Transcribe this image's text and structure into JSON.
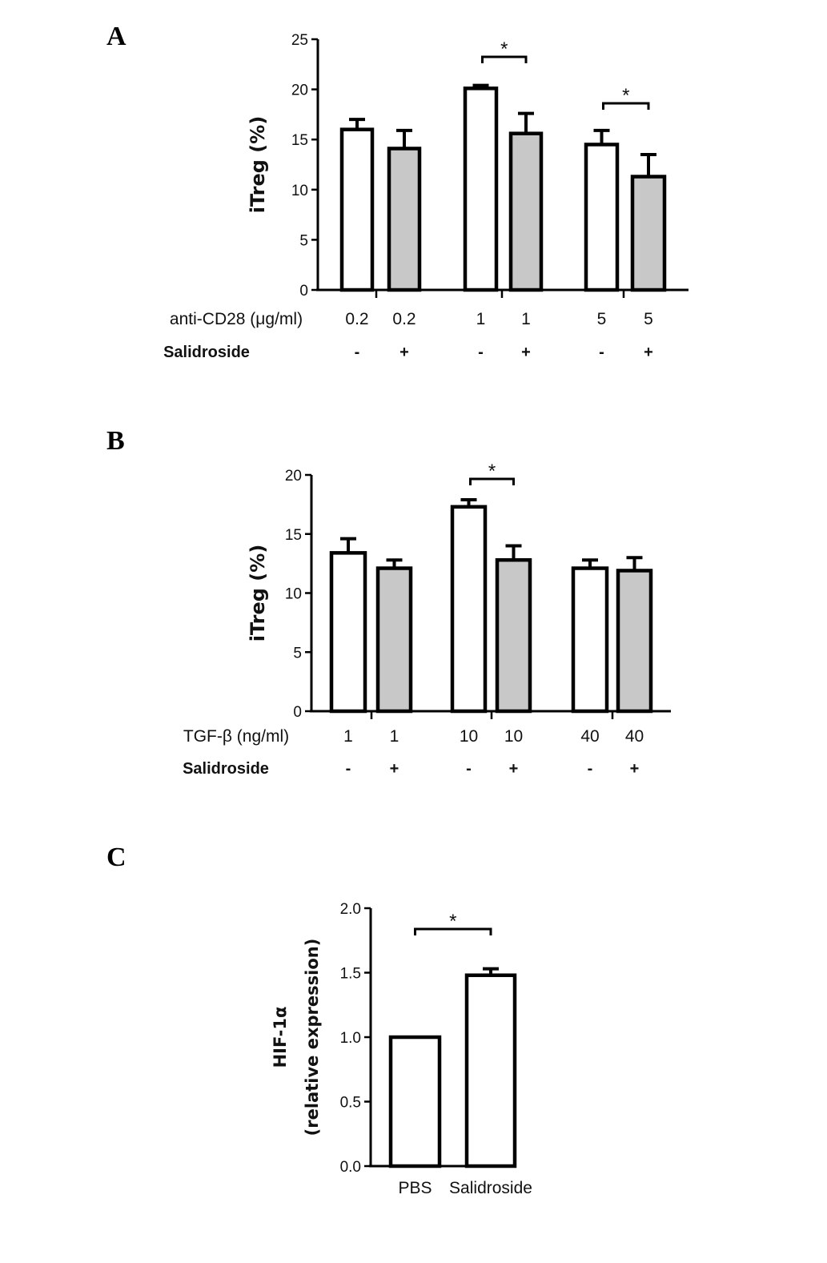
{
  "chart_data": [
    {
      "panel": "A",
      "type": "bar",
      "ylabel": "iTreg (%)",
      "ylim": [
        0,
        25
      ],
      "yticks": [
        0,
        5,
        10,
        15,
        20,
        25
      ],
      "row_labels": [
        "anti-CD28 (μg/ml)",
        "Salidroside"
      ],
      "categories": [
        "0.2",
        "0.2",
        "1",
        "1",
        "5",
        "5"
      ],
      "salidroside": [
        "-",
        "+",
        "-",
        "+",
        "-",
        "+"
      ],
      "values": [
        16.0,
        14.1,
        20.1,
        15.6,
        14.5,
        11.3
      ],
      "errors": [
        1.0,
        1.8,
        0.3,
        2.0,
        1.4,
        2.2
      ],
      "significance": [
        {
          "pair": [
            2,
            3
          ],
          "label": "*"
        },
        {
          "pair": [
            4,
            5
          ],
          "label": "*"
        }
      ],
      "colors": {
        "control": "#ffffff",
        "salidroside": "#c8c8c8"
      }
    },
    {
      "panel": "B",
      "type": "bar",
      "ylabel": "iTreg (%)",
      "ylim": [
        0,
        20
      ],
      "yticks": [
        0,
        5,
        10,
        15,
        20
      ],
      "row_labels": [
        "TGF-β (ng/ml)",
        "Salidroside"
      ],
      "categories": [
        "1",
        "1",
        "10",
        "10",
        "40",
        "40"
      ],
      "salidroside": [
        "-",
        "+",
        "-",
        "+",
        "-",
        "+"
      ],
      "values": [
        13.4,
        12.1,
        17.3,
        12.8,
        12.1,
        11.9
      ],
      "errors": [
        1.2,
        0.7,
        0.6,
        1.2,
        0.7,
        1.1
      ],
      "significance": [
        {
          "pair": [
            2,
            3
          ],
          "label": "*"
        }
      ],
      "colors": {
        "control": "#ffffff",
        "salidroside": "#c8c8c8"
      }
    },
    {
      "panel": "C",
      "type": "bar",
      "ylabel": [
        "HIF-1α",
        "(relative expression)"
      ],
      "ylim": [
        0,
        2.0
      ],
      "yticks": [
        "0.0",
        "0.5",
        "1.0",
        "1.5",
        "2.0"
      ],
      "categories": [
        "PBS",
        "Salidroside"
      ],
      "values": [
        1.0,
        1.48
      ],
      "errors": [
        0,
        0.05
      ],
      "significance": [
        {
          "pair": [
            0,
            1
          ],
          "label": "*"
        }
      ],
      "colors": {
        "bar": "#ffffff"
      }
    }
  ]
}
